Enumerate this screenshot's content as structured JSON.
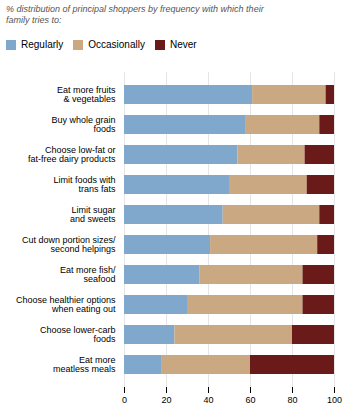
{
  "chart_data": {
    "type": "bar",
    "orientation": "horizontal",
    "stacked": true,
    "title": "% distribution of principal shoppers by frequency with which their\nfamily tries to:",
    "categories": [
      "Eat more fruits\n& vegetables",
      "Buy whole grain\nfoods",
      "Choose low-fat or\nfat-free dairy products",
      "Limit foods with\ntrans fats",
      "Limit sugar\nand sweets",
      "Cut down portion sizes/\nsecond helpings",
      "Eat more fish/\nseafood",
      "Choose healthier options\nwhen eating out",
      "Choose lower-carb\nfoods",
      "Eat more\nmeatless meals"
    ],
    "series": [
      {
        "name": "Regularly",
        "color": "#7fa8cc",
        "values": [
          61,
          58,
          54,
          50,
          47,
          41,
          36,
          30,
          24,
          18
        ]
      },
      {
        "name": "Occasionally",
        "color": "#c9a882",
        "values": [
          35,
          35,
          32,
          37,
          46,
          51,
          49,
          55,
          56,
          42
        ]
      },
      {
        "name": "Never",
        "color": "#6b1a1a",
        "values": [
          4,
          7,
          14,
          13,
          7,
          8,
          15,
          15,
          20,
          40
        ]
      }
    ],
    "xlim": [
      0,
      100
    ],
    "xticks": [
      0,
      20,
      40,
      60,
      80,
      100
    ],
    "grid": true,
    "legend": "top"
  }
}
